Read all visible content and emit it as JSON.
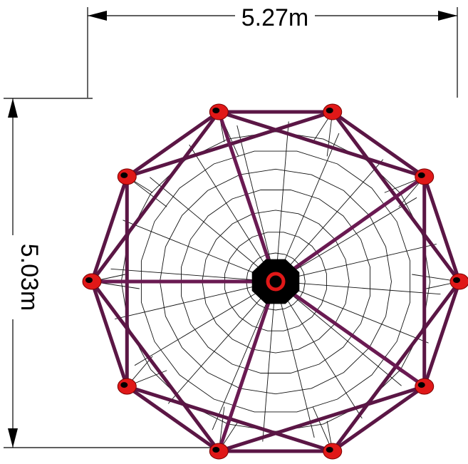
{
  "dimensions": {
    "width_label": "5.27m",
    "height_label": "5.03m"
  },
  "structure": {
    "node_count": 10,
    "frame_color": "#5b1645",
    "spoke_color": "#6a1a52",
    "node_color": "#e01818",
    "hub_color": "#000000",
    "net_color": "#111111"
  }
}
